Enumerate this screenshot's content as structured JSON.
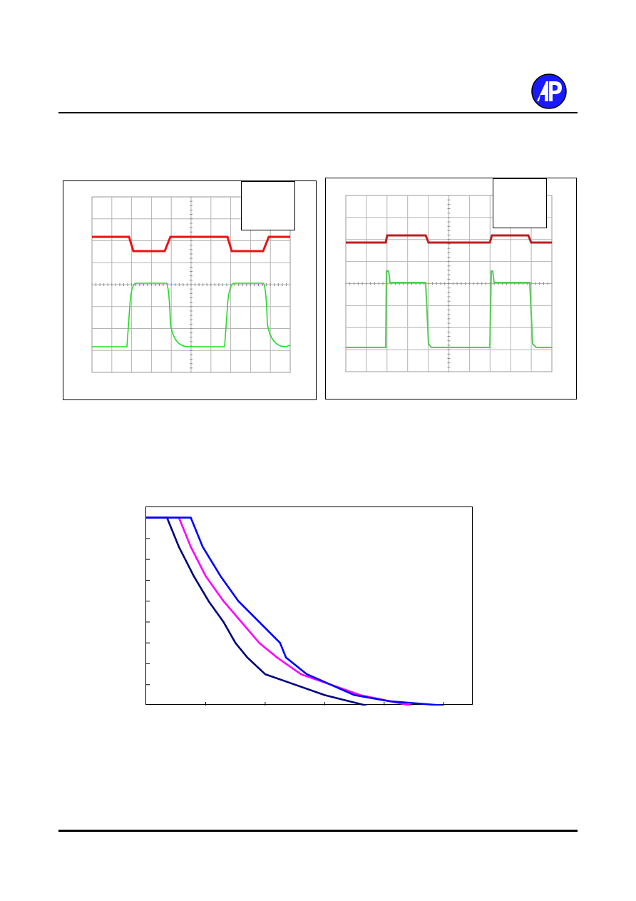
{
  "header": {
    "logo_icon": "ap-circle-logo-icon",
    "logo_color": "#1a1aff"
  },
  "scope_left": {
    "inset_text": "",
    "traces": [
      {
        "name": "",
        "color": "#ee1111"
      },
      {
        "name": "",
        "color": "#22dd22"
      }
    ]
  },
  "scope_right": {
    "inset_text": "",
    "traces": [
      {
        "name": "",
        "color": "#bb2020"
      },
      {
        "name": "",
        "color": "#55cc55"
      }
    ]
  },
  "chart_data": {
    "type": "line",
    "title": "",
    "xlabel": "",
    "ylabel": "",
    "grid": false,
    "xlim": [
      0,
      5.5
    ],
    "ylim": [
      0,
      9.5
    ],
    "series": [
      {
        "color": "#000080",
        "x": [
          0,
          0.35,
          0.55,
          0.8,
          1.05,
          1.3,
          1.5,
          1.7,
          2.0,
          2.5,
          3.0,
          3.7
        ],
        "y": [
          9.0,
          9.0,
          7.6,
          6.2,
          5.0,
          4.0,
          3.0,
          2.3,
          1.5,
          1.0,
          0.5,
          0.0
        ]
      },
      {
        "color": "#ff00ff",
        "x": [
          0,
          0.55,
          0.75,
          1.0,
          1.3,
          1.6,
          1.9,
          2.2,
          2.6,
          3.1,
          3.6,
          4.45
        ],
        "y": [
          9.0,
          9.0,
          7.6,
          6.2,
          5.0,
          4.0,
          3.0,
          2.3,
          1.5,
          1.0,
          0.5,
          0.0
        ]
      },
      {
        "color": "#0000ff",
        "x": [
          0,
          0.75,
          0.95,
          1.25,
          1.55,
          1.9,
          2.25,
          2.35,
          2.7,
          3.1,
          3.5,
          4.1,
          5.0
        ],
        "y": [
          9.0,
          9.0,
          7.6,
          6.2,
          5.0,
          4.0,
          3.0,
          2.3,
          1.5,
          1.0,
          0.5,
          0.2,
          0.0
        ]
      }
    ]
  }
}
